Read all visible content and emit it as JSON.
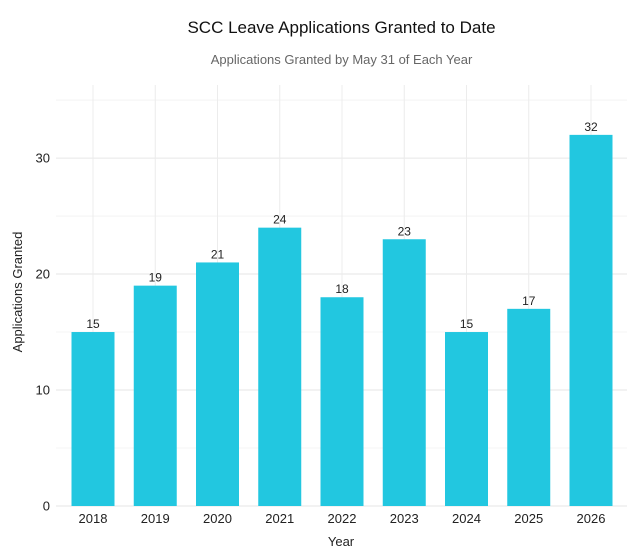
{
  "chart_data": {
    "type": "bar",
    "title": "SCC Leave Applications Granted to Date",
    "subtitle": "Applications Granted by May 31 of Each Year",
    "xlabel": "Year",
    "ylabel": "Applications Granted",
    "categories": [
      "2018",
      "2019",
      "2020",
      "2021",
      "2022",
      "2023",
      "2024",
      "2025",
      "2026"
    ],
    "values": [
      15,
      19,
      21,
      24,
      18,
      23,
      15,
      17,
      32
    ],
    "ylim": [
      0,
      36.3
    ],
    "yticks": [
      0,
      10,
      20,
      30
    ],
    "grid": true,
    "bar_color": "#22C7E0",
    "data_labels": true
  }
}
